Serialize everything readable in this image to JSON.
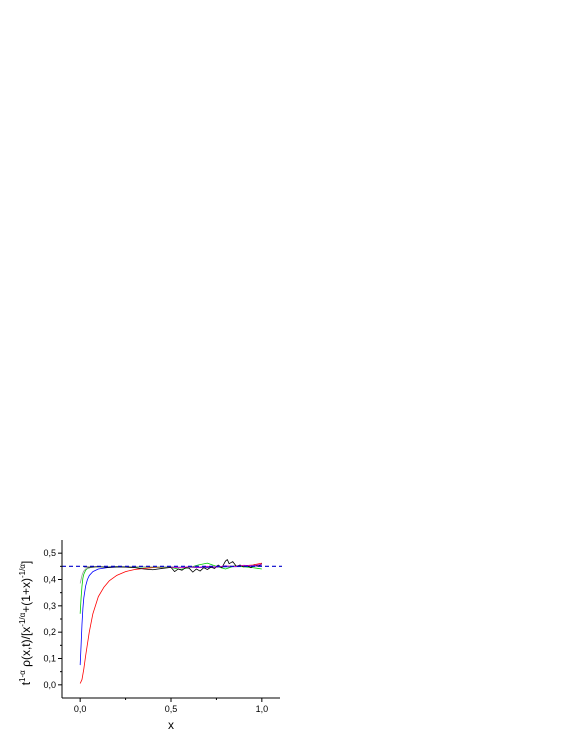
{
  "chart_data": {
    "type": "line",
    "xlabel": "x",
    "ylabel": "t^{1-α} ρ(x,t)/[x^{-1/α}+(1+x)^{-1/α}]",
    "ylabel_parts": {
      "t": "t",
      "exp1": "1-α",
      "mid": " ρ(x,t)/[x",
      "exp2": "-1/α",
      "plus": "+(1+x)",
      "exp3": "-1/α",
      "close": "]"
    },
    "xlim": [
      -0.1,
      1.1
    ],
    "ylim": [
      -0.05,
      0.55
    ],
    "xticks": [
      {
        "value": 0.0,
        "label": "0,0"
      },
      {
        "value": 0.5,
        "label": "0,5"
      },
      {
        "value": 1.0,
        "label": "1,0"
      }
    ],
    "yticks": [
      {
        "value": 0.0,
        "label": "0,0"
      },
      {
        "value": 0.1,
        "label": "0,1"
      },
      {
        "value": 0.2,
        "label": "0,2"
      },
      {
        "value": 0.3,
        "label": "0,3"
      },
      {
        "value": 0.4,
        "label": "0,4"
      },
      {
        "value": 0.5,
        "label": "0,5"
      }
    ],
    "grid": false,
    "reference_line": {
      "y": 0.45,
      "style": "dashed",
      "color": "#0000cc"
    },
    "series": [
      {
        "color": "#ff0000",
        "x": [
          0.0,
          0.01,
          0.02,
          0.03,
          0.05,
          0.07,
          0.1,
          0.13,
          0.16,
          0.2,
          0.25,
          0.3,
          0.35,
          0.4,
          0.45,
          0.5,
          0.55,
          0.6,
          0.65,
          0.7,
          0.75,
          0.8,
          0.85,
          0.9,
          0.95,
          1.0
        ],
        "y": [
          0.005,
          0.02,
          0.06,
          0.11,
          0.2,
          0.27,
          0.335,
          0.37,
          0.395,
          0.415,
          0.43,
          0.438,
          0.442,
          0.445,
          0.446,
          0.447,
          0.445,
          0.447,
          0.446,
          0.448,
          0.447,
          0.45,
          0.449,
          0.452,
          0.455,
          0.462
        ]
      },
      {
        "color": "#0000ff",
        "x": [
          0.0,
          0.005,
          0.01,
          0.015,
          0.02,
          0.03,
          0.04,
          0.05,
          0.07,
          0.1,
          0.15,
          0.2,
          0.3,
          0.4,
          0.5,
          0.6,
          0.7,
          0.8,
          0.9,
          1.0
        ],
        "y": [
          0.075,
          0.15,
          0.23,
          0.29,
          0.33,
          0.375,
          0.4,
          0.415,
          0.43,
          0.44,
          0.445,
          0.447,
          0.448,
          0.448,
          0.447,
          0.446,
          0.445,
          0.448,
          0.449,
          0.452
        ]
      },
      {
        "color": "#00cc00",
        "x": [
          0.0,
          0.005,
          0.01,
          0.015,
          0.02,
          0.03,
          0.04,
          0.06,
          0.1,
          0.2,
          0.3,
          0.4,
          0.5,
          0.55,
          0.6,
          0.65,
          0.7,
          0.75,
          0.8,
          0.85,
          0.9,
          0.95,
          1.0
        ],
        "y": [
          0.27,
          0.33,
          0.375,
          0.405,
          0.42,
          0.435,
          0.442,
          0.446,
          0.448,
          0.449,
          0.448,
          0.447,
          0.446,
          0.438,
          0.445,
          0.455,
          0.462,
          0.45,
          0.44,
          0.452,
          0.448,
          0.445,
          0.44
        ]
      },
      {
        "color": "#9a9a9a",
        "x": [
          0.0,
          0.005,
          0.01,
          0.015,
          0.02,
          0.03,
          0.05,
          0.1,
          0.2,
          0.3,
          0.4,
          0.5,
          0.6,
          0.7,
          0.8,
          0.9,
          1.0
        ],
        "y": [
          0.385,
          0.4,
          0.415,
          0.425,
          0.432,
          0.44,
          0.445,
          0.448,
          0.449,
          0.449,
          0.448,
          0.447,
          0.446,
          0.448,
          0.45,
          0.451,
          0.455
        ]
      },
      {
        "color": "#000000",
        "x": [
          0.02,
          0.05,
          0.1,
          0.15,
          0.2,
          0.25,
          0.3,
          0.35,
          0.4,
          0.45,
          0.5,
          0.52,
          0.54,
          0.56,
          0.58,
          0.6,
          0.62,
          0.64,
          0.66,
          0.68,
          0.7,
          0.72,
          0.74,
          0.76,
          0.78,
          0.8,
          0.81,
          0.82,
          0.84,
          0.86,
          0.88,
          0.9,
          0.92,
          0.94,
          0.96,
          0.98,
          1.0
        ],
        "y": [
          0.448,
          0.447,
          0.449,
          0.446,
          0.448,
          0.447,
          0.445,
          0.44,
          0.437,
          0.442,
          0.446,
          0.43,
          0.44,
          0.435,
          0.445,
          0.443,
          0.428,
          0.44,
          0.432,
          0.445,
          0.438,
          0.447,
          0.442,
          0.455,
          0.445,
          0.47,
          0.476,
          0.46,
          0.468,
          0.45,
          0.455,
          0.448,
          0.452,
          0.445,
          0.455,
          0.45,
          0.46
        ]
      },
      {
        "color": "#cc00cc",
        "x": [
          0.5,
          0.55,
          0.6,
          0.65,
          0.7,
          0.75,
          0.8,
          0.85,
          0.9,
          0.95,
          1.0
        ],
        "y": [
          0.447,
          0.444,
          0.449,
          0.446,
          0.45,
          0.447,
          0.452,
          0.449,
          0.454,
          0.452,
          0.458
        ]
      }
    ]
  }
}
